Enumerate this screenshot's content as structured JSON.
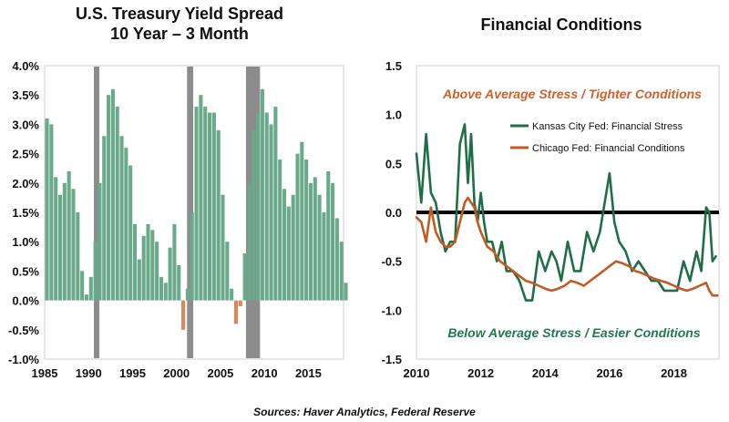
{
  "footer": {
    "sources": "Sources: Haver Analytics, Federal Reserve"
  },
  "chart_data": [
    {
      "type": "bar",
      "title": "U.S. Treasury Yield Spread",
      "subtitle": "10 Year – 3 Month",
      "xlabel": "",
      "ylabel": "",
      "ylim": [
        -1.0,
        4.0
      ],
      "xlim": [
        1985,
        2019
      ],
      "y_ticks": [
        "-1.0%",
        "-0.5%",
        "0.0%",
        "0.5%",
        "1.0%",
        "1.5%",
        "2.0%",
        "2.5%",
        "3.0%",
        "3.5%",
        "4.0%"
      ],
      "x_ticks": [
        "1985",
        "1990",
        "1995",
        "2000",
        "2005",
        "2010",
        "2015"
      ],
      "grid": false,
      "colors": {
        "positive": "#6aaa8a",
        "negative": "#e0845a",
        "recession": "#8c8c8c"
      },
      "recessions": [
        [
          1990.6,
          1991.2
        ],
        [
          2001.2,
          2001.9
        ],
        [
          2007.9,
          2009.5
        ]
      ],
      "series": [
        {
          "x": [
            1985.0,
            1985.5,
            1986.0,
            1986.5,
            1987.0,
            1987.5,
            1988.0,
            1988.5,
            1989.0,
            1989.5,
            1990.0,
            1990.5,
            1991.0,
            1991.5,
            1992.0,
            1992.5,
            1993.0,
            1993.5,
            1994.0,
            1994.5,
            1995.0,
            1995.5,
            1996.0,
            1996.5,
            1997.0,
            1997.5,
            1998.0,
            1998.5,
            1999.0,
            1999.5,
            2000.0,
            2000.5,
            2001.0,
            2001.5,
            2002.0,
            2002.5,
            2003.0,
            2003.5,
            2004.0,
            2004.5,
            2005.0,
            2005.5,
            2006.0,
            2006.5,
            2007.0,
            2007.5,
            2008.0,
            2008.5,
            2009.0,
            2009.5,
            2010.0,
            2010.5,
            2011.0,
            2011.5,
            2012.0,
            2012.5,
            2013.0,
            2013.5,
            2014.0,
            2014.5,
            2015.0,
            2015.5,
            2016.0,
            2016.5,
            2017.0,
            2017.5,
            2018.0,
            2018.5,
            2019.0
          ],
          "values": [
            3.1,
            3.0,
            2.1,
            1.8,
            2.0,
            2.2,
            1.9,
            1.5,
            0.5,
            0.1,
            0.4,
            1.0,
            2.0,
            2.8,
            3.5,
            3.6,
            3.3,
            2.8,
            2.6,
            2.3,
            1.3,
            0.7,
            1.1,
            1.3,
            1.2,
            1.0,
            0.4,
            0.3,
            0.9,
            1.3,
            0.6,
            -0.5,
            0.2,
            1.5,
            3.3,
            3.5,
            3.3,
            3.2,
            3.2,
            2.9,
            1.8,
            1.0,
            0.2,
            -0.4,
            -0.1,
            0.8,
            2.0,
            2.9,
            3.2,
            3.6,
            3.2,
            3.0,
            3.3,
            2.4,
            1.9,
            1.6,
            1.8,
            2.5,
            2.7,
            2.4,
            2.0,
            2.1,
            1.8,
            1.5,
            2.2,
            2.0,
            1.4,
            1.0,
            0.3
          ]
        }
      ]
    },
    {
      "type": "line",
      "title": "Financial Conditions",
      "xlabel": "",
      "ylabel": "",
      "ylim": [
        -1.5,
        1.5
      ],
      "xlim": [
        2010,
        2019.4
      ],
      "y_ticks": [
        "-1.5",
        "-1.0",
        "-0.5",
        "0.0",
        "0.5",
        "1.0",
        "1.5"
      ],
      "x_ticks": [
        "2010",
        "2012",
        "2014",
        "2016",
        "2018"
      ],
      "grid": false,
      "legend_position": "top-right",
      "annotations": {
        "above": "Above Average Stress / Tighter Conditions",
        "below": "Below Average Stress / Easier Conditions"
      },
      "series": [
        {
          "name": "Kansas City Fed: Financial Stress",
          "color": "#1f6e46",
          "x": [
            2010.0,
            2010.15,
            2010.3,
            2010.45,
            2010.6,
            2010.75,
            2010.9,
            2011.05,
            2011.2,
            2011.35,
            2011.5,
            2011.6,
            2011.7,
            2011.8,
            2011.9,
            2012.0,
            2012.1,
            2012.2,
            2012.35,
            2012.5,
            2012.65,
            2012.8,
            2013.0,
            2013.2,
            2013.4,
            2013.6,
            2013.8,
            2014.0,
            2014.2,
            2014.35,
            2014.5,
            2014.7,
            2014.9,
            2015.1,
            2015.3,
            2015.5,
            2015.7,
            2015.85,
            2016.0,
            2016.15,
            2016.3,
            2016.5,
            2016.7,
            2016.9,
            2017.1,
            2017.3,
            2017.5,
            2017.7,
            2017.9,
            2018.1,
            2018.3,
            2018.5,
            2018.7,
            2018.85,
            2019.0,
            2019.1,
            2019.2,
            2019.3
          ],
          "values": [
            0.6,
            0.1,
            0.8,
            0.2,
            0.1,
            -0.2,
            -0.4,
            -0.3,
            -0.3,
            0.7,
            0.9,
            0.3,
            0.8,
            0.1,
            -0.1,
            0.2,
            -0.1,
            -0.3,
            -0.3,
            -0.5,
            -0.3,
            -0.6,
            -0.6,
            -0.7,
            -0.9,
            -0.9,
            -0.4,
            -0.6,
            -0.4,
            -0.5,
            -0.7,
            -0.3,
            -0.6,
            -0.6,
            -0.2,
            -0.4,
            -0.2,
            0.1,
            0.4,
            -0.1,
            -0.3,
            -0.4,
            -0.6,
            -0.5,
            -0.6,
            -0.7,
            -0.7,
            -0.8,
            -0.8,
            -0.8,
            -0.5,
            -0.7,
            -0.4,
            -0.6,
            0.05,
            0.0,
            -0.5,
            -0.45
          ]
        },
        {
          "name": "Chicago Fed: Financial Conditions",
          "color": "#c25a22",
          "x": [
            2010.0,
            2010.15,
            2010.3,
            2010.45,
            2010.6,
            2010.75,
            2010.9,
            2011.05,
            2011.2,
            2011.35,
            2011.5,
            2011.6,
            2011.7,
            2011.8,
            2011.9,
            2012.0,
            2012.2,
            2012.4,
            2012.6,
            2012.8,
            2013.0,
            2013.2,
            2013.4,
            2013.6,
            2013.8,
            2014.0,
            2014.2,
            2014.4,
            2014.6,
            2014.8,
            2015.0,
            2015.2,
            2015.4,
            2015.6,
            2015.8,
            2016.0,
            2016.2,
            2016.4,
            2016.6,
            2016.8,
            2017.0,
            2017.2,
            2017.4,
            2017.6,
            2017.8,
            2018.0,
            2018.2,
            2018.4,
            2018.6,
            2018.8,
            2019.0,
            2019.1,
            2019.2,
            2019.35
          ],
          "values": [
            -0.05,
            -0.1,
            -0.3,
            0.05,
            -0.2,
            -0.3,
            -0.35,
            -0.35,
            -0.3,
            -0.1,
            0.1,
            0.15,
            0.1,
            0.05,
            -0.1,
            -0.2,
            -0.35,
            -0.4,
            -0.5,
            -0.55,
            -0.6,
            -0.65,
            -0.7,
            -0.72,
            -0.75,
            -0.78,
            -0.8,
            -0.78,
            -0.75,
            -0.7,
            -0.72,
            -0.75,
            -0.7,
            -0.65,
            -0.6,
            -0.55,
            -0.5,
            -0.52,
            -0.55,
            -0.6,
            -0.62,
            -0.65,
            -0.68,
            -0.7,
            -0.72,
            -0.75,
            -0.78,
            -0.8,
            -0.78,
            -0.75,
            -0.72,
            -0.8,
            -0.85,
            -0.85
          ]
        }
      ]
    }
  ]
}
